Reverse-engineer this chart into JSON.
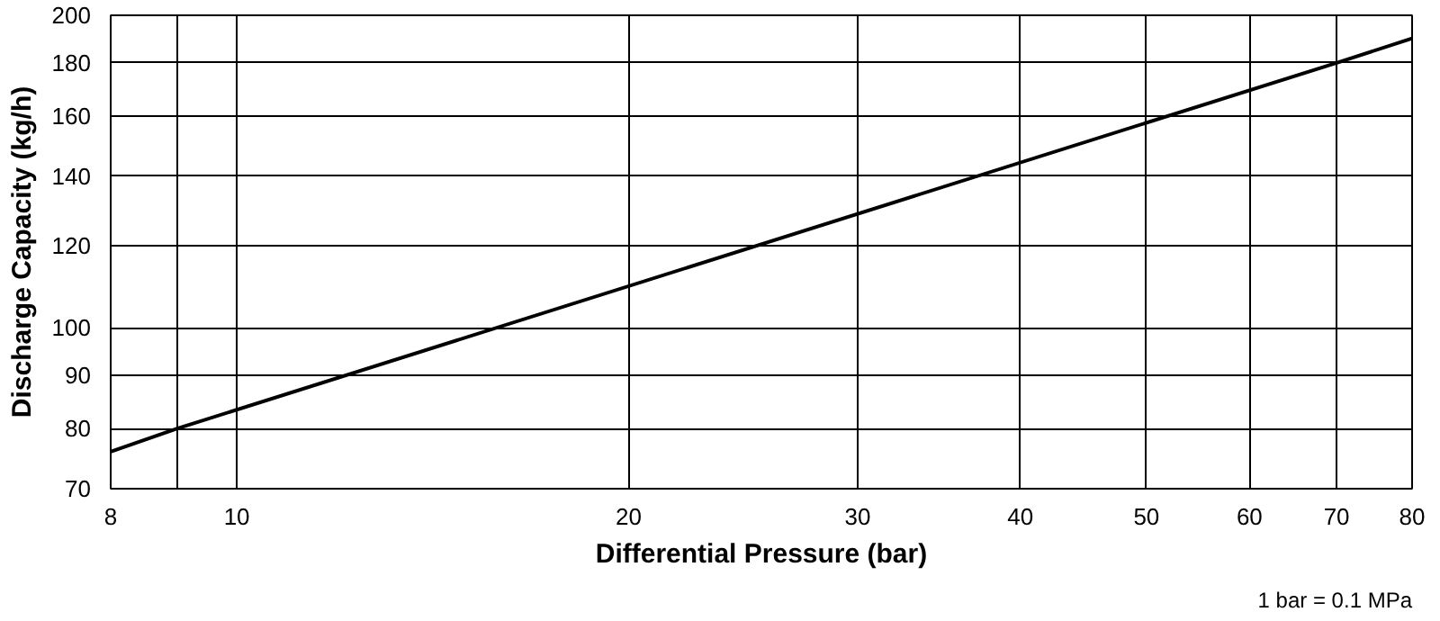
{
  "chart_data": {
    "type": "line",
    "xlabel": "Differential Pressure (bar)",
    "ylabel": "Discharge Capacity (kg/h)",
    "annotations": [
      "1 bar = 0.1 MPa"
    ],
    "log": "xy",
    "grid": true,
    "marker": "none",
    "line_style": "solid",
    "xlim": [
      8,
      80
    ],
    "xticks": [
      8,
      {
        "value": 9,
        "label": null
      },
      10,
      20,
      30,
      40,
      50,
      60,
      70,
      80
    ],
    "ylim": [
      70,
      200
    ],
    "yticks": [
      70,
      80,
      90,
      100,
      120,
      140,
      160,
      180,
      200
    ],
    "series": [
      {
        "color": "#000000",
        "x": [
          8,
          9,
          70,
          80
        ],
        "values": [
          76,
          80,
          180,
          190
        ]
      }
    ]
  }
}
